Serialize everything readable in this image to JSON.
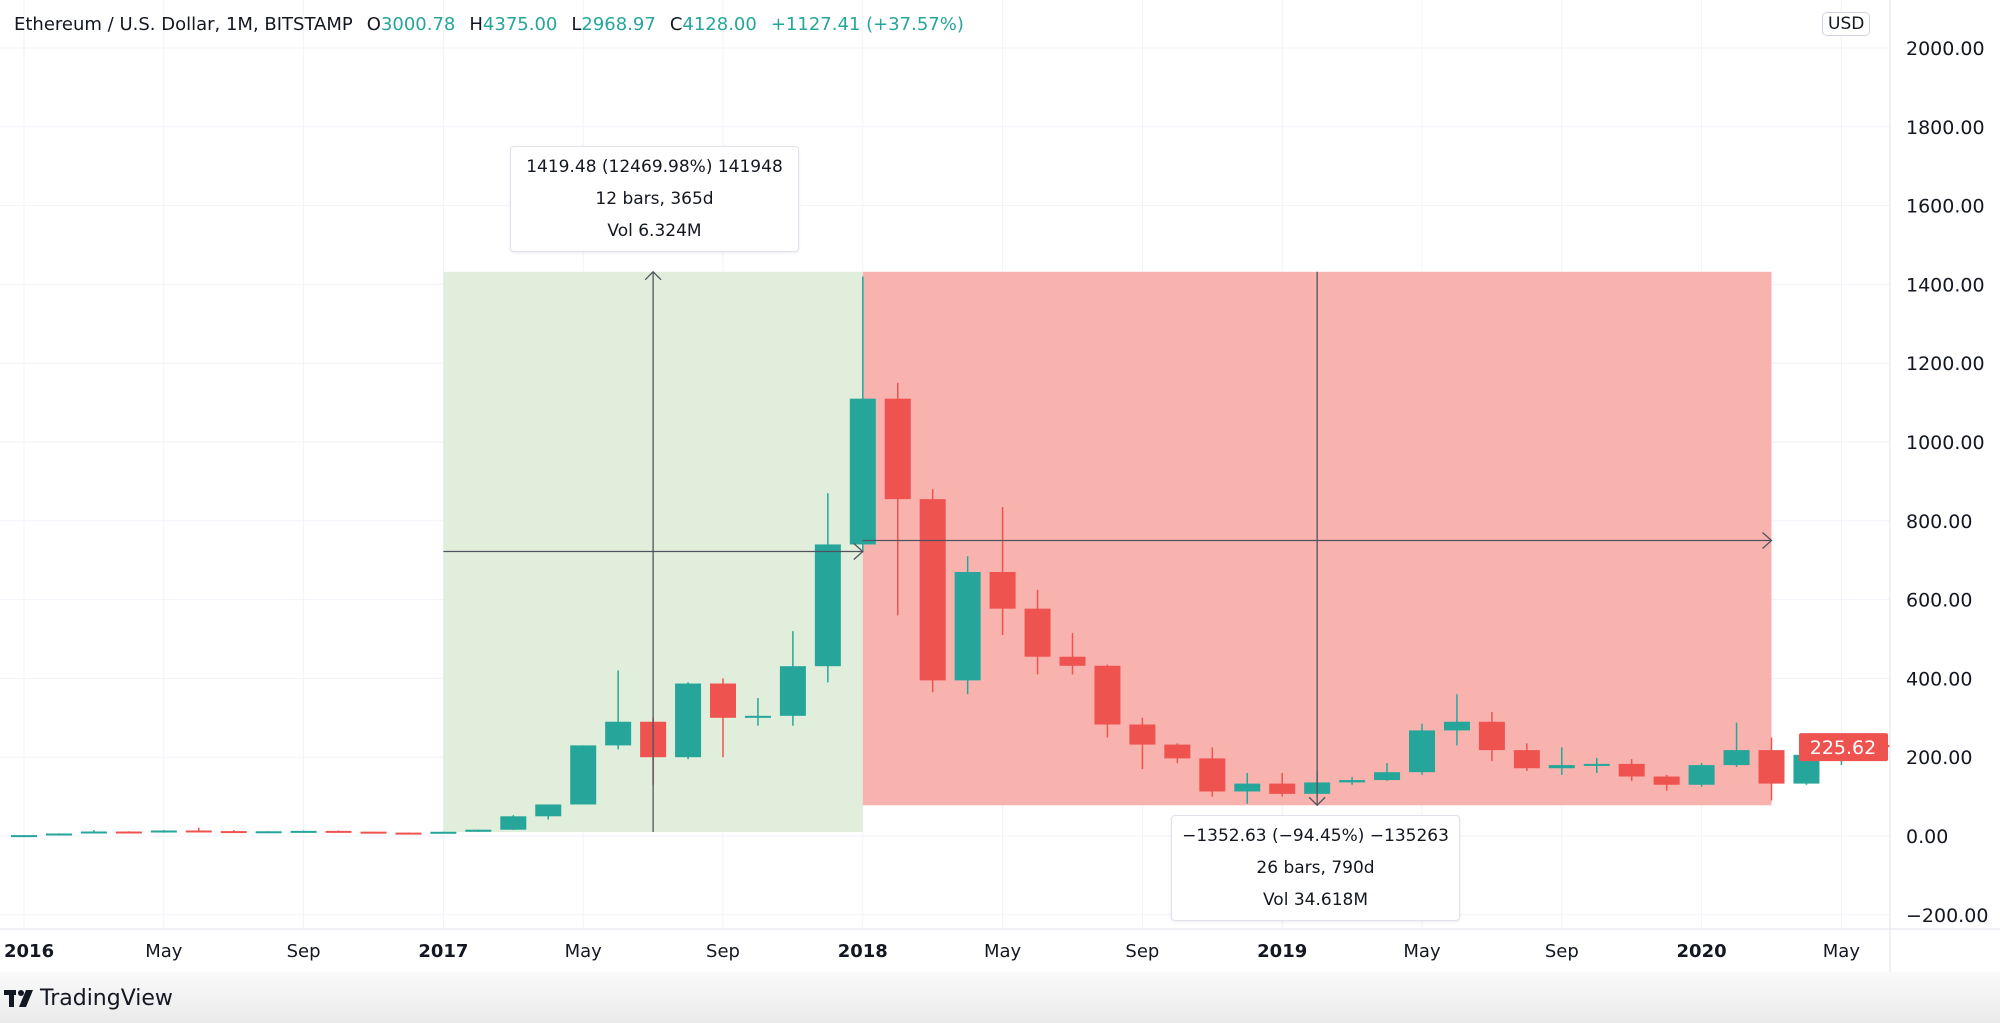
{
  "header": {
    "symbol": "Ethereum / U.S. Dollar, 1M, BITSTAMP",
    "open_label": "O",
    "open": "3000.78",
    "high_label": "H",
    "high": "4375.00",
    "low_label": "L",
    "low": "2968.97",
    "close_label": "C",
    "close": "4128.00",
    "change": "+1127.41 (+37.57%)"
  },
  "currency": "USD",
  "footer": {
    "brand": "TradingView"
  },
  "colors": {
    "up": "#26a69a",
    "down": "#ef5350",
    "long_zone": "#e1eedb",
    "short_zone": "#f9b3ae"
  },
  "measure_up": {
    "line1": "1419.48 (12469.98%) 141948",
    "line2": "12 bars, 365d",
    "line3": "Vol 6.324M",
    "from_month": 12,
    "to_month": 24,
    "price_low": 10,
    "price_high": 1432,
    "mid_price": 722
  },
  "measure_down": {
    "line1": "−1352.63 (−94.45%) −135263",
    "line2": "26 bars, 790d",
    "line3": "Vol 34.618M",
    "from_month": 24,
    "to_month": 50,
    "price_low": 78,
    "price_high": 1432,
    "mid_price": 750
  },
  "chart_data": {
    "type": "candlestick",
    "title": "Ethereum / U.S. Dollar, 1M, BITSTAMP",
    "ylim": [
      -200,
      2000
    ],
    "y_ticks": [
      "2000.00",
      "1800.00",
      "1600.00",
      "1400.00",
      "1200.00",
      "1000.00",
      "800.00",
      "600.00",
      "400.00",
      "200.00",
      "0.00",
      "−200.00"
    ],
    "y_tick_values": [
      2000,
      1800,
      1600,
      1400,
      1200,
      1000,
      800,
      600,
      400,
      200,
      0,
      -200
    ],
    "x_ticks": [
      {
        "label": "2016",
        "month": 0,
        "bold": true
      },
      {
        "label": "May",
        "month": 4
      },
      {
        "label": "Sep",
        "month": 8
      },
      {
        "label": "2017",
        "month": 12,
        "bold": true
      },
      {
        "label": "May",
        "month": 16
      },
      {
        "label": "Sep",
        "month": 20
      },
      {
        "label": "2018",
        "month": 24,
        "bold": true
      },
      {
        "label": "May",
        "month": 28
      },
      {
        "label": "Sep",
        "month": 32
      },
      {
        "label": "2019",
        "month": 36,
        "bold": true
      },
      {
        "label": "May",
        "month": 40
      },
      {
        "label": "Sep",
        "month": 44
      },
      {
        "label": "2020",
        "month": 48,
        "bold": true
      },
      {
        "label": "May",
        "month": 52
      }
    ],
    "last_price": "225.62",
    "last_price_value": 225.62,
    "ohlc": [
      [
        0.9,
        2.5,
        0.9,
        2.2
      ],
      [
        2.2,
        6.7,
        2.1,
        6.4
      ],
      [
        6.4,
        15,
        6.3,
        11.4
      ],
      [
        11.4,
        12,
        7,
        8.8
      ],
      [
        8.8,
        15,
        8.5,
        14
      ],
      [
        14,
        21,
        11,
        12.5
      ],
      [
        12.5,
        15,
        9,
        11.3
      ],
      [
        11.3,
        12,
        10.3,
        12
      ],
      [
        12,
        14,
        11.5,
        13
      ],
      [
        13,
        14,
        10.5,
        11
      ],
      [
        11,
        11,
        8.5,
        8.6
      ],
      [
        8.6,
        9,
        7,
        8
      ],
      [
        8,
        10.8,
        8,
        10.7
      ],
      [
        10.7,
        16,
        10.5,
        16
      ],
      [
        16,
        53,
        15.5,
        50
      ],
      [
        50,
        80,
        42,
        80
      ],
      [
        80,
        230,
        80,
        230
      ],
      [
        230,
        420,
        220,
        290
      ],
      [
        290,
        300,
        130,
        200
      ],
      [
        200,
        390,
        195,
        387
      ],
      [
        387,
        400,
        200,
        300
      ],
      [
        300,
        350,
        280,
        305
      ],
      [
        305,
        520,
        280,
        431
      ],
      [
        431,
        870,
        390,
        740
      ],
      [
        740,
        1420,
        720,
        1110
      ],
      [
        1110,
        1150,
        560,
        855
      ],
      [
        855,
        880,
        365,
        395
      ],
      [
        395,
        710,
        360,
        670
      ],
      [
        670,
        835,
        510,
        577
      ],
      [
        577,
        625,
        410,
        455
      ],
      [
        455,
        515,
        410,
        432
      ],
      [
        432,
        435,
        250,
        283
      ],
      [
        283,
        300,
        170,
        232
      ],
      [
        232,
        235,
        185,
        197
      ],
      [
        197,
        225,
        100,
        113
      ],
      [
        113,
        160,
        82,
        133
      ],
      [
        133,
        160,
        100,
        107
      ],
      [
        107,
        165,
        100,
        136
      ],
      [
        136,
        150,
        130,
        142
      ],
      [
        142,
        185,
        140,
        162
      ],
      [
        162,
        285,
        155,
        268
      ],
      [
        268,
        360,
        230,
        290
      ],
      [
        290,
        315,
        190,
        218
      ],
      [
        218,
        235,
        165,
        172
      ],
      [
        172,
        225,
        155,
        180
      ],
      [
        180,
        198,
        160,
        183
      ],
      [
        183,
        195,
        140,
        151
      ],
      [
        151,
        155,
        115,
        130
      ],
      [
        130,
        185,
        125,
        180
      ],
      [
        180,
        288,
        175,
        218
      ],
      [
        218,
        250,
        90,
        133
      ],
      [
        133,
        225,
        130,
        206
      ],
      [
        206,
        245,
        180,
        231
      ],
      [
        231,
        250,
        220,
        225.62
      ]
    ]
  }
}
